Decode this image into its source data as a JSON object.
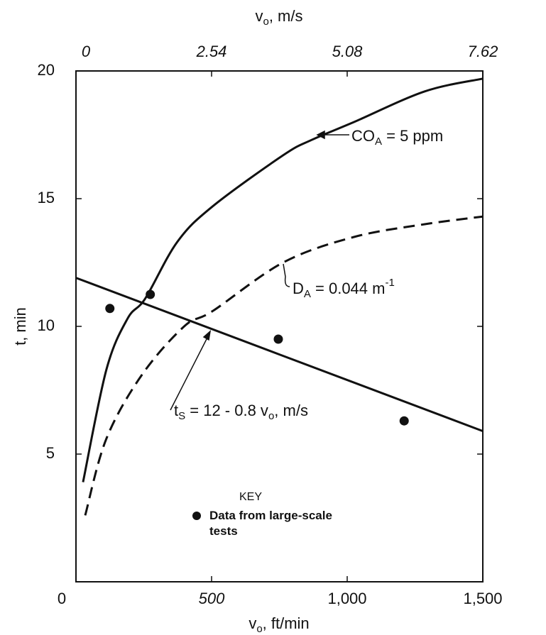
{
  "chart_data": {
    "type": "line",
    "x_label_top": {
      "parts": [
        "v",
        "o",
        ",  m/s"
      ]
    },
    "x_label": {
      "parts": [
        "v",
        "o",
        ",  ft/min"
      ]
    },
    "y_label": "t, min",
    "xlim": [
      0,
      1500
    ],
    "xticks": [
      0,
      500,
      {
        "value": 1000,
        "label": "1,000"
      },
      {
        "value": 1500,
        "label": "1,500"
      }
    ],
    "x2lim": [
      0,
      7.62
    ],
    "x2ticks": [
      0,
      2.54,
      5.08,
      7.62
    ],
    "ylim": [
      0,
      20
    ],
    "yticks": [
      5,
      10,
      15,
      20
    ],
    "series": [
      {
        "style": "solid",
        "color": "#111111",
        "x": [
          26,
          112,
          190,
          256,
          373,
          504,
          764,
          869,
          1025,
          1286,
          1500
        ],
        "values": [
          3.9,
          8.3,
          10.3,
          11.1,
          13.3,
          14.7,
          16.7,
          17.3,
          18.0,
          19.2,
          19.7
        ]
      },
      {
        "style": "dashed",
        "color": "#111111",
        "x": [
          34,
          112,
          243,
          399,
          504,
          764,
          1025,
          1286,
          1500
        ],
        "values": [
          2.6,
          5.6,
          8.1,
          10.0,
          10.6,
          12.5,
          13.5,
          14.0,
          14.3
        ]
      },
      {
        "style": "solid",
        "color": "#111111",
        "x": [
          0,
          1500
        ],
        "values": [
          11.9,
          5.9
        ]
      },
      {
        "style": "points",
        "color": "#111111",
        "name": "Data from large-scale tests",
        "x": [
          125,
          274,
          746,
          1210
        ],
        "values": [
          10.7,
          11.25,
          9.5,
          6.3
        ]
      }
    ],
    "legend_title": "KEY",
    "annotations": [
      {
        "parts": [
          "CO",
          "A",
          " = 5 ppm"
        ]
      },
      {
        "parts": [
          "D",
          "A",
          " = 0.044 m",
          "-1"
        ]
      },
      {
        "parts": [
          "t",
          "S",
          " = 12 - 0.8 v",
          "o",
          ", m/s"
        ]
      }
    ]
  }
}
